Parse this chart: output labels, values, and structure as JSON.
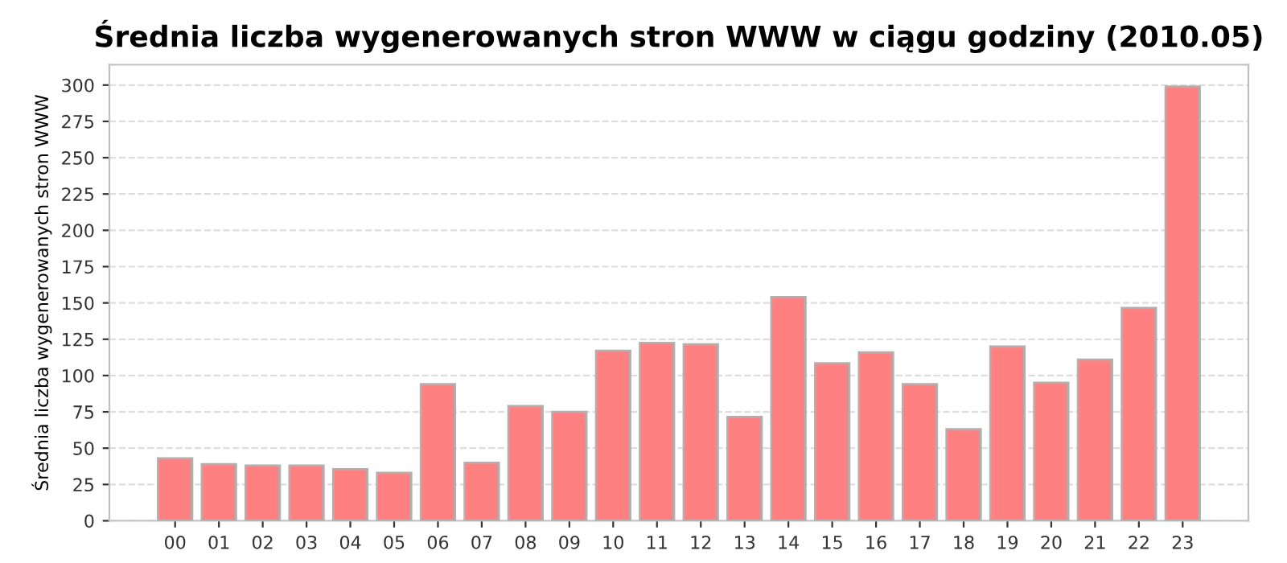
{
  "chart_data": {
    "type": "bar",
    "title": "Średnia liczba wygenerowanych stron WWW w ciągu godziny (2010.05)",
    "ylabel": "Średnia liczba wygenerowanych stron WWW",
    "categories": [
      "00",
      "01",
      "02",
      "03",
      "04",
      "05",
      "06",
      "07",
      "08",
      "09",
      "10",
      "11",
      "12",
      "13",
      "14",
      "15",
      "16",
      "17",
      "18",
      "19",
      "20",
      "21",
      "22",
      "23"
    ],
    "values": [
      43,
      39,
      38,
      38,
      35.5,
      33,
      94,
      40,
      79,
      75,
      117,
      122.5,
      121.5,
      71.5,
      154,
      108.5,
      116,
      94,
      63,
      120,
      95,
      111,
      146.5,
      299
    ],
    "color": "#ff8080",
    "ylim": [
      0,
      314
    ],
    "yticks": [
      0,
      25,
      50,
      75,
      100,
      125,
      150,
      175,
      200,
      225,
      250,
      275,
      300
    ],
    "grid": "y"
  }
}
